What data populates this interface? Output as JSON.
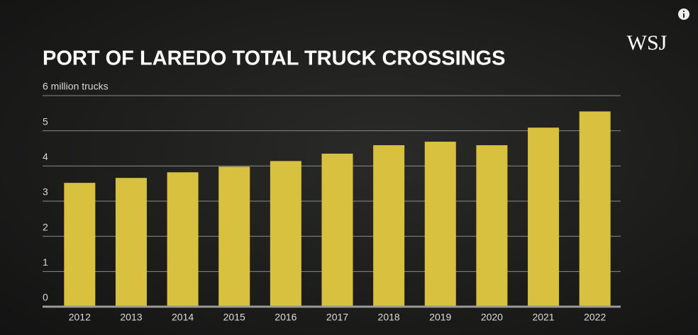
{
  "logo": "WSJ",
  "chart_data": {
    "type": "bar",
    "title": "PORT OF LAREDO TOTAL TRUCK CROSSINGS",
    "categories": [
      "2012",
      "2013",
      "2014",
      "2015",
      "2016",
      "2017",
      "2018",
      "2019",
      "2020",
      "2021",
      "2022"
    ],
    "values": [
      3.52,
      3.66,
      3.82,
      3.98,
      4.14,
      4.35,
      4.59,
      4.69,
      4.59,
      5.09,
      5.55
    ],
    "color": "#d8c13f",
    "ylim": [
      0,
      6
    ],
    "yticks": [
      0,
      1,
      2,
      3,
      4,
      5,
      {
        "value": 6,
        "label": "6 million trucks"
      }
    ],
    "grid": true
  }
}
